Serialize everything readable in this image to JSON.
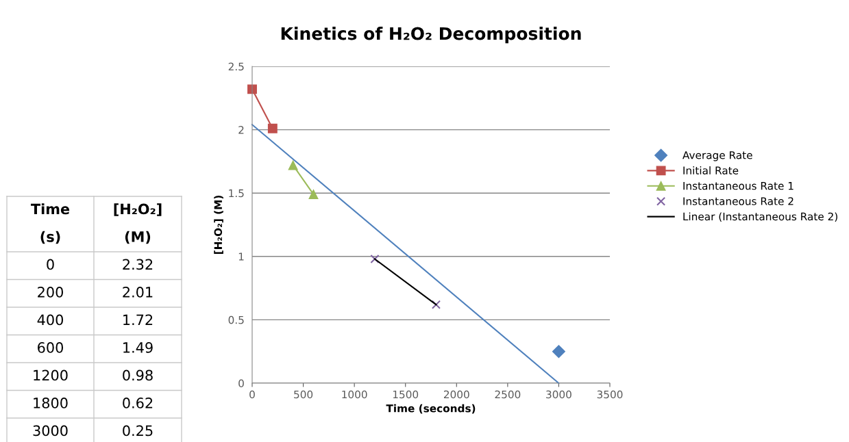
{
  "chart_data": [
    {
      "type": "other",
      "annotations": [
        "Time",
        "[H₂O₂]",
        "(s)",
        "(M)",
        "0",
        "2.32",
        "200",
        "2.01",
        "400",
        "1.72",
        "600",
        "1.49",
        "1200",
        "0.98",
        "1800",
        "0.62",
        "3000",
        "0.25"
      ]
    },
    {
      "type": "scatter",
      "title": "Kinetics of H₂O₂ Decomposition",
      "xlabel": "Time (seconds)",
      "ylabel": "[H₂O₂] (M)",
      "xlim": [
        0,
        3500
      ],
      "xticks": [
        0,
        500,
        1000,
        1500,
        2000,
        2500,
        3000,
        3500
      ],
      "ylim": [
        0,
        2.5
      ],
      "yticks": [
        0,
        0.5,
        1,
        1.5,
        2,
        2.5
      ],
      "grid": "y",
      "legend": "right",
      "series": [
        {
          "type": "line",
          "color": "#4f81bd",
          "marker": "none",
          "x": [
            0,
            3000
          ],
          "values": [
            2.04,
            0
          ]
        },
        {
          "name": "Average Rate",
          "type": "scatter",
          "color": "#4f81bd",
          "marker": "diamond",
          "x": [
            3000
          ],
          "values": [
            0.25
          ]
        },
        {
          "name": "Initial Rate",
          "type": "line",
          "color": "#c0504d",
          "marker": "square",
          "x": [
            0,
            200
          ],
          "values": [
            2.32,
            2.01
          ]
        },
        {
          "name": "Instantaneous Rate 1",
          "type": "line",
          "color": "#9bbb59",
          "marker": "triangle",
          "x": [
            400,
            600
          ],
          "values": [
            1.72,
            1.49
          ]
        },
        {
          "name": "Instantaneous Rate 2",
          "type": "scatter",
          "color": "#8064a2",
          "marker": "cross",
          "x": [
            1200,
            1800
          ],
          "values": [
            0.98,
            0.62
          ]
        },
        {
          "name": "Linear (Instantaneous Rate 2)",
          "type": "line",
          "color": "#000000",
          "marker": "none",
          "x": [
            1200,
            1800
          ],
          "values": [
            0.98,
            0.62
          ]
        }
      ]
    }
  ]
}
